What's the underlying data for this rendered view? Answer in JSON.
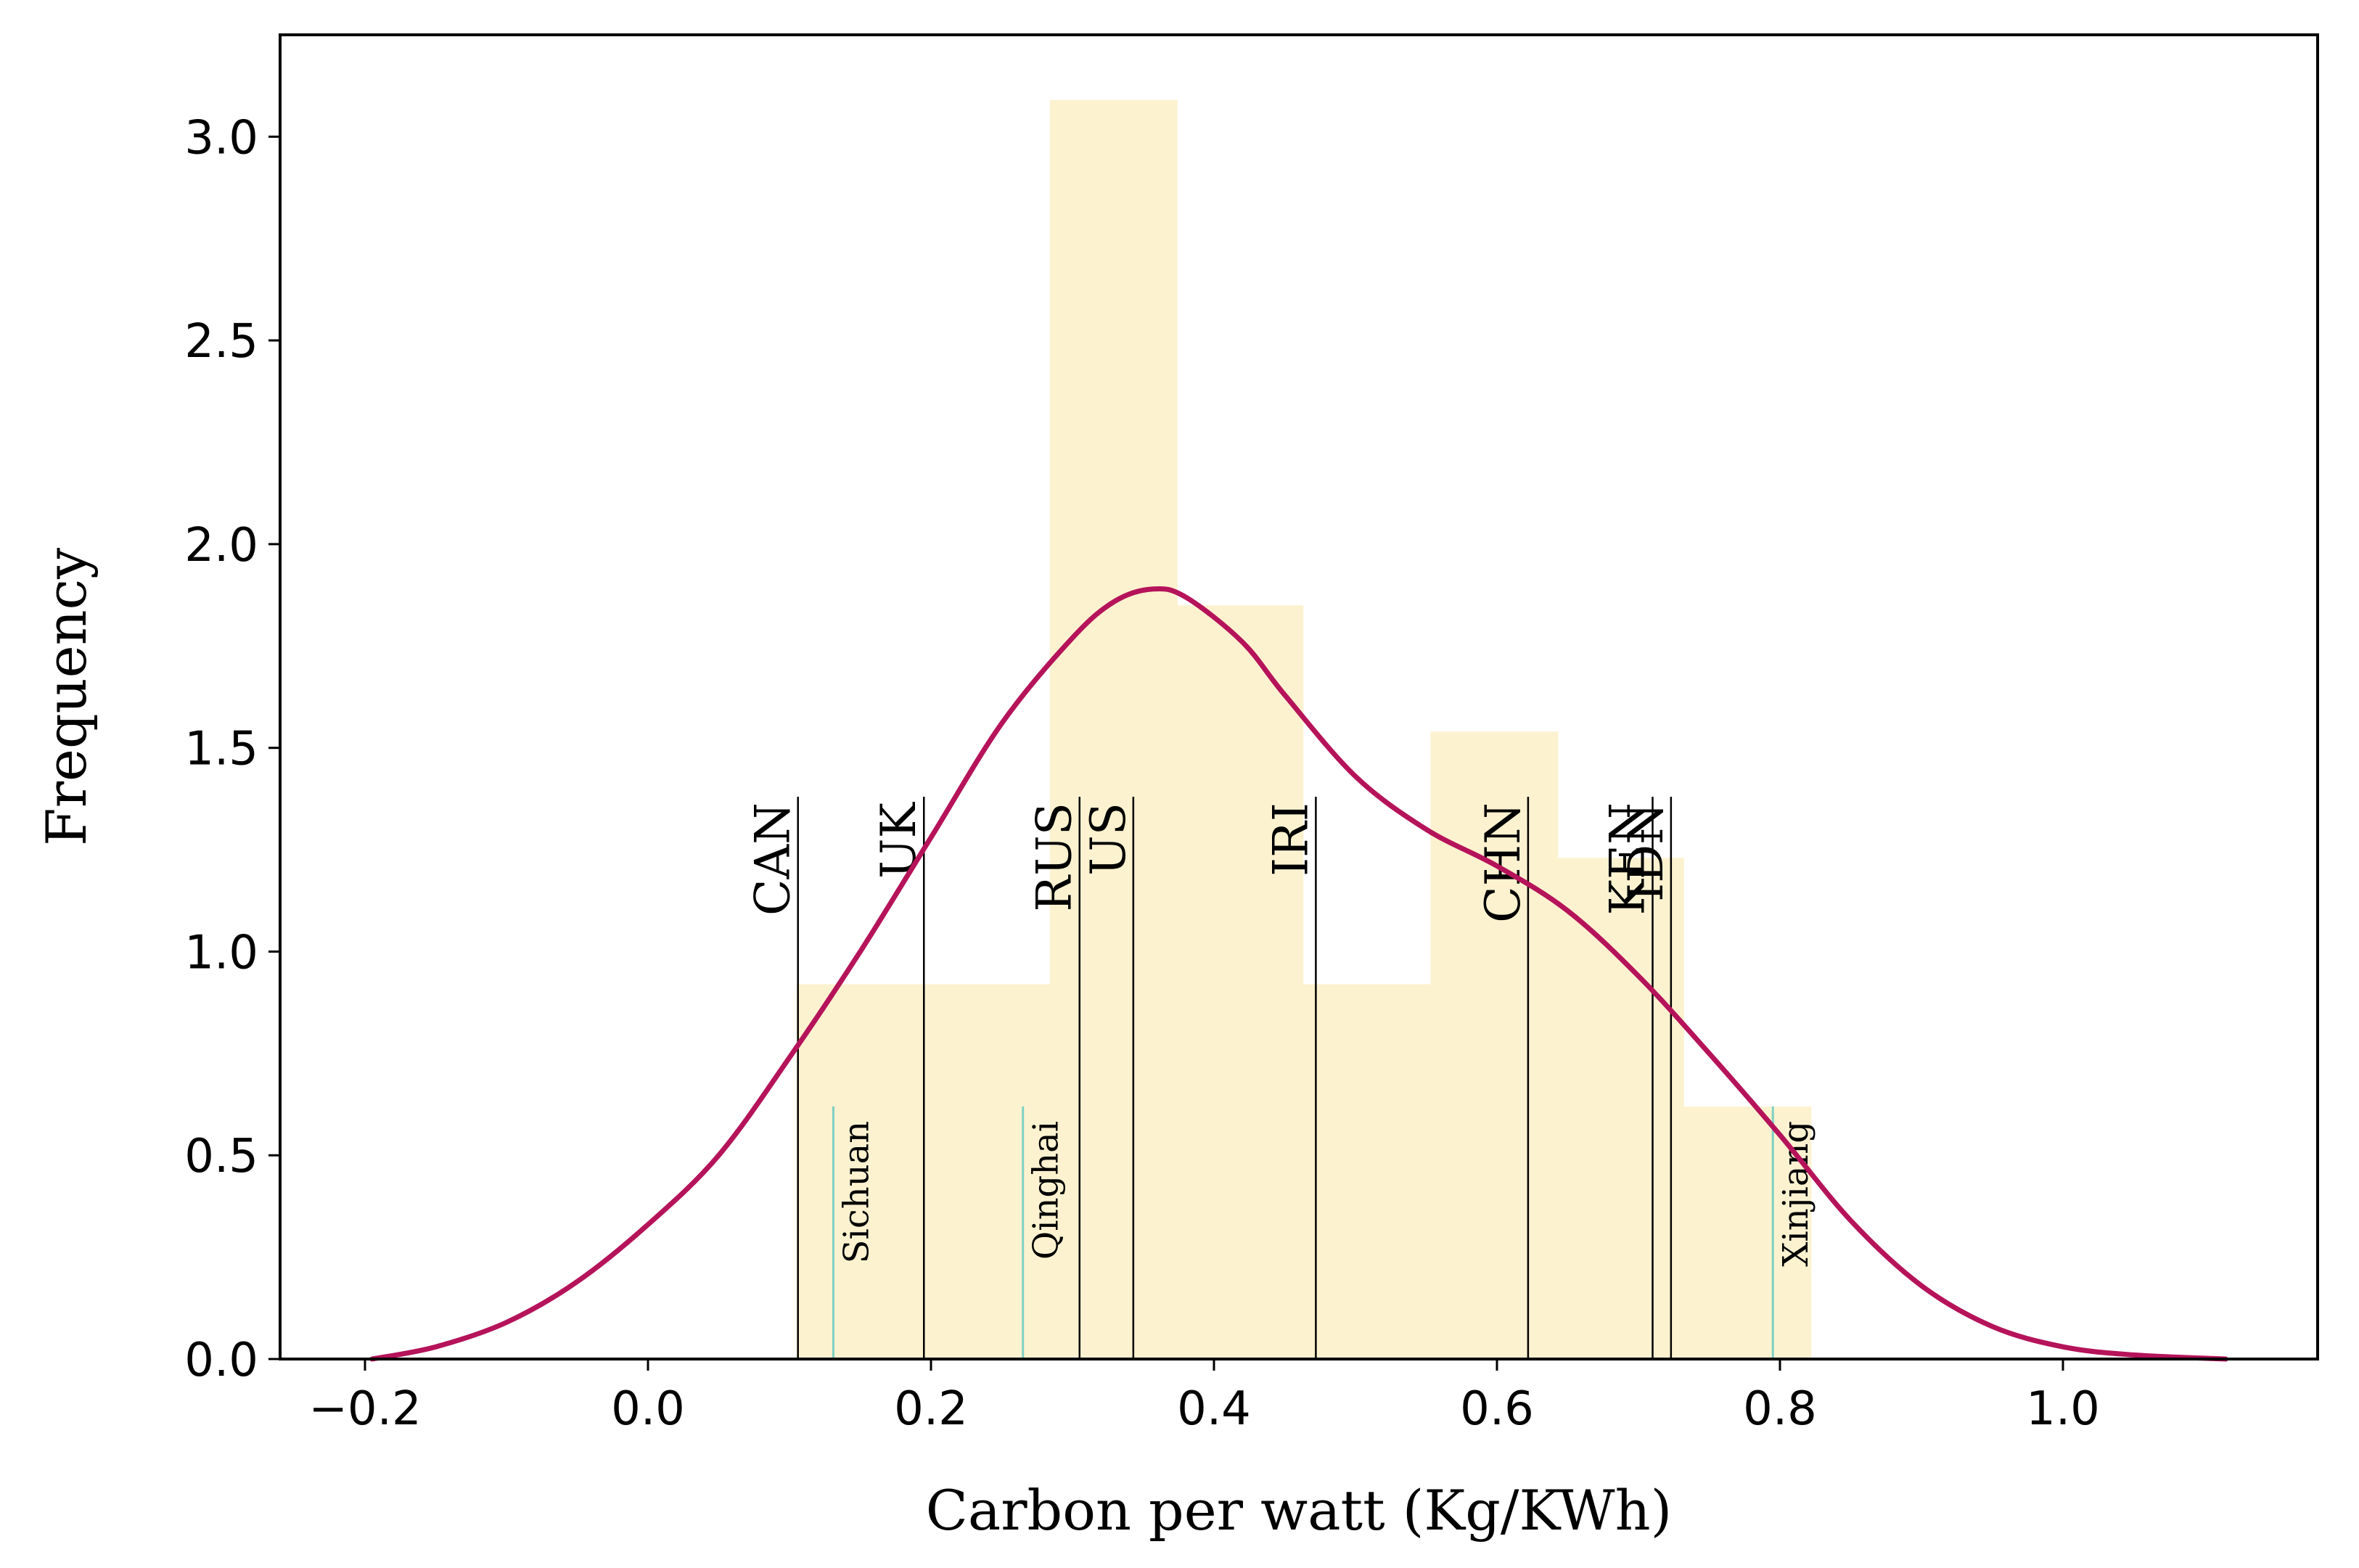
{
  "chart_data": {
    "type": "bar",
    "title": "",
    "xlabel": "Carbon per watt (Kg/KWh)",
    "ylabel": "Frequency",
    "xlim": [
      -0.26,
      1.18
    ],
    "ylim": [
      0.0,
      3.25
    ],
    "xticks": [
      -0.2,
      0.0,
      0.2,
      0.4,
      0.6,
      0.8,
      1.0
    ],
    "xtick_labels": [
      "−0.2",
      "0.0",
      "0.2",
      "0.4",
      "0.6",
      "0.8",
      "1.0"
    ],
    "yticks": [
      0.0,
      0.5,
      1.0,
      1.5,
      2.0,
      2.5,
      3.0
    ],
    "ytick_labels": [
      "0.0",
      "0.5",
      "1.0",
      "1.5",
      "2.0",
      "2.5",
      "3.0"
    ],
    "histogram": {
      "color": "#fdf2d0",
      "bins": [
        {
          "start": 0.105,
          "end": 0.195,
          "value": 0.92
        },
        {
          "start": 0.195,
          "end": 0.284,
          "value": 0.92
        },
        {
          "start": 0.284,
          "end": 0.374,
          "value": 3.09
        },
        {
          "start": 0.374,
          "end": 0.463,
          "value": 1.85
        },
        {
          "start": 0.463,
          "end": 0.553,
          "value": 0.92
        },
        {
          "start": 0.553,
          "end": 0.643,
          "value": 1.54
        },
        {
          "start": 0.643,
          "end": 0.732,
          "value": 1.23
        },
        {
          "start": 0.732,
          "end": 0.822,
          "value": 0.62
        }
      ]
    },
    "kde": {
      "color": "#b5135a",
      "x": [
        -0.195,
        -0.15,
        -0.1,
        -0.05,
        0.0,
        0.05,
        0.1,
        0.15,
        0.2,
        0.25,
        0.3,
        0.33,
        0.357,
        0.38,
        0.42,
        0.45,
        0.5,
        0.55,
        0.6,
        0.65,
        0.7,
        0.75,
        0.8,
        0.85,
        0.9,
        0.95,
        1.0,
        1.05,
        1.115
      ],
      "y": [
        0.0,
        0.03,
        0.09,
        0.19,
        0.33,
        0.5,
        0.74,
        1.0,
        1.28,
        1.56,
        1.77,
        1.86,
        1.89,
        1.87,
        1.76,
        1.63,
        1.43,
        1.3,
        1.21,
        1.1,
        0.94,
        0.75,
        0.55,
        0.34,
        0.18,
        0.08,
        0.03,
        0.01,
        0.0
      ]
    },
    "country_markers": {
      "color": "#000000",
      "top": 1.38,
      "items": [
        {
          "label": "CAN",
          "x": 0.106
        },
        {
          "label": "UK",
          "x": 0.195
        },
        {
          "label": "RUS",
          "x": 0.305
        },
        {
          "label": "US",
          "x": 0.343
        },
        {
          "label": "IRI",
          "x": 0.472
        },
        {
          "label": "CHN",
          "x": 0.622
        },
        {
          "label": "KEN",
          "x": 0.71
        },
        {
          "label": "IDN",
          "x": 0.723
        }
      ]
    },
    "province_markers": {
      "color": "#7fcfc4",
      "top": 0.62,
      "items": [
        {
          "label": "Sichuan",
          "x": 0.131
        },
        {
          "label": "Qinghai",
          "x": 0.265
        },
        {
          "label": "Xinjiang",
          "x": 0.795
        }
      ]
    }
  }
}
